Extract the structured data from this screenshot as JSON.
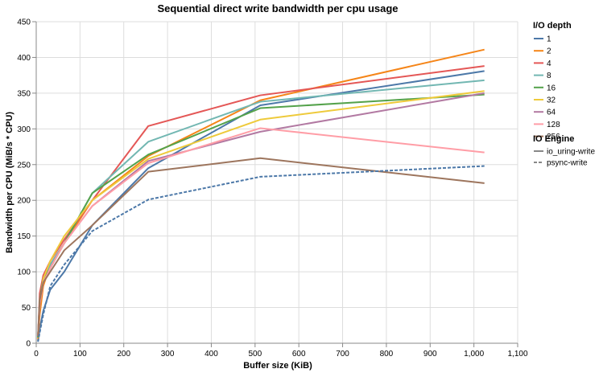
{
  "chart_data": {
    "type": "line",
    "title": "Sequential direct write bandwidth per cpu usage",
    "xlabel": "Buffer size (KiB)",
    "ylabel": "Bandwidth per CPU (MiB/s * CPU)",
    "xlim": [
      0,
      1100
    ],
    "ylim": [
      0,
      450
    ],
    "x_ticks": [
      0,
      100,
      200,
      300,
      400,
      500,
      600,
      700,
      800,
      900,
      1000,
      1100
    ],
    "x_tick_labels": [
      "0",
      "100",
      "200",
      "300",
      "400",
      "500",
      "600",
      "700",
      "800",
      "900",
      "1,000",
      "1,100"
    ],
    "y_ticks": [
      0,
      50,
      100,
      150,
      200,
      250,
      300,
      350,
      400,
      450
    ],
    "grid": true,
    "legend_placement": "right",
    "x": [
      4,
      8,
      16,
      32,
      64,
      128,
      256,
      512,
      1024
    ],
    "legend_depth_title": "I/O depth",
    "legend_engine_title": "IO Engine",
    "series": [
      {
        "name": "1",
        "color": "#4c78a8",
        "engine": "io_uring-write",
        "values": [
          3,
          20,
          45,
          75,
          100,
          165,
          245,
          333,
          381
        ]
      },
      {
        "name": "2",
        "color": "#f58518",
        "engine": "io_uring-write",
        "values": [
          5,
          40,
          80,
          110,
          140,
          200,
          262,
          340,
          411
        ]
      },
      {
        "name": "4",
        "color": "#e45756",
        "engine": "io_uring-write",
        "values": [
          8,
          70,
          95,
          115,
          145,
          200,
          304,
          347,
          388
        ]
      },
      {
        "name": "8",
        "color": "#72b7b2",
        "engine": "io_uring-write",
        "values": [
          8,
          60,
          90,
          110,
          140,
          210,
          282,
          338,
          368
        ]
      },
      {
        "name": "16",
        "color": "#54a24b",
        "engine": "io_uring-write",
        "values": [
          8,
          60,
          90,
          105,
          140,
          210,
          264,
          329,
          348
        ]
      },
      {
        "name": "32",
        "color": "#eeca3b",
        "engine": "io_uring-write",
        "values": [
          10,
          55,
          90,
          115,
          150,
          200,
          258,
          313,
          353
        ]
      },
      {
        "name": "64",
        "color": "#b279a2",
        "engine": "io_uring-write",
        "values": [
          10,
          55,
          85,
          105,
          140,
          192,
          255,
          296,
          350
        ]
      },
      {
        "name": "128",
        "color": "#ff9da6",
        "engine": "io_uring-write",
        "values": [
          10,
          55,
          85,
          105,
          140,
          192,
          252,
          301,
          267
        ]
      },
      {
        "name": "256",
        "color": "#9d755d",
        "engine": "io_uring-write",
        "values": [
          10,
          60,
          85,
          100,
          130,
          165,
          240,
          259,
          224
        ]
      },
      {
        "name": "psync-write",
        "color": "#4c78a8",
        "engine": "psync-write",
        "values": [
          2,
          15,
          40,
          80,
          110,
          157,
          201,
          233,
          248
        ]
      }
    ],
    "engines": [
      {
        "name": "io_uring-write",
        "dash": "solid"
      },
      {
        "name": "psync-write",
        "dash": "dashed"
      }
    ]
  }
}
